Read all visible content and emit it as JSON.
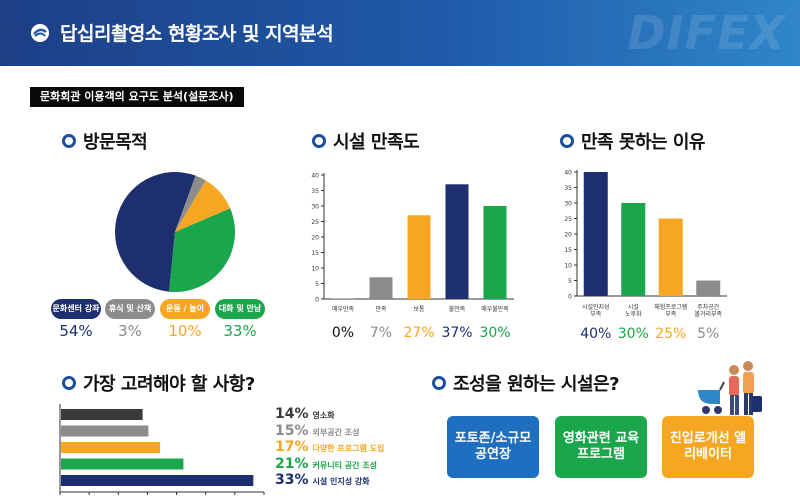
{
  "header": {
    "title": "답십리촬영소 현황조사 및 지역분석",
    "brand": "DIFEX"
  },
  "section_tag": "문화회관 이용객의 요구도 분석(설문조사)",
  "colors": {
    "navy": "#1d2f6f",
    "gray": "#8c8c8c",
    "orange": "#f6a623",
    "green": "#1aa64a",
    "blue": "#1f4e9c",
    "header_blue": "#1f5aa8"
  },
  "panels": {
    "visit": {
      "title": "방문목적"
    },
    "satisfaction": {
      "title": "시설 만족도"
    },
    "reasons": {
      "title": "만족 못하는 이유"
    },
    "considerations": {
      "title": "가장 고려해야 할 사항?"
    },
    "facilities": {
      "title": "조성을 원하는 시설은?"
    }
  },
  "facilities": [
    {
      "label": "포토존/소규모 공연장",
      "color": "#1f6fc0"
    },
    {
      "label": "영화관련 교육프로그램",
      "color": "#1aa64a"
    },
    {
      "label": "진입로개선 엘리베이터",
      "color": "#f6a623"
    }
  ],
  "chart_data": [
    {
      "type": "pie",
      "title": "방문목적",
      "categories": [
        "문화센터 강좌",
        "휴식 및 산책",
        "운동 / 놀이",
        "대화 및 만남"
      ],
      "values": [
        54,
        3,
        10,
        33
      ],
      "value_labels": [
        "54%",
        "3%",
        "10%",
        "33%"
      ],
      "colors": [
        "#1d2f6f",
        "#8c8c8c",
        "#f6a623",
        "#1aa64a"
      ]
    },
    {
      "type": "bar",
      "title": "시설 만족도",
      "categories": [
        "매우만족",
        "만족",
        "보통",
        "불만족",
        "매우불만족"
      ],
      "values": [
        0,
        7,
        27,
        37,
        30
      ],
      "value_labels": [
        "0%",
        "7%",
        "27%",
        "37%",
        "30%"
      ],
      "colors": [
        "#8c8c8c",
        "#8c8c8c",
        "#f6a623",
        "#1d2f6f",
        "#1aa64a"
      ],
      "yticks": [
        0,
        5,
        10,
        15,
        20,
        25,
        30,
        35,
        40
      ],
      "ylim": [
        0,
        40
      ]
    },
    {
      "type": "bar",
      "title": "만족 못하는 이유",
      "categories": [
        "시설인지성 부족",
        "시설 노후화",
        "체험프로그램 부족",
        "주차공간 볼거리부족"
      ],
      "values": [
        40,
        30,
        25,
        5
      ],
      "value_labels": [
        "40%",
        "30%",
        "25%",
        "5%"
      ],
      "colors": [
        "#1d2f6f",
        "#1aa64a",
        "#f6a623",
        "#8c8c8c"
      ],
      "yticks": [
        0,
        5,
        10,
        15,
        20,
        25,
        30,
        35,
        40
      ],
      "ylim": [
        0,
        40
      ]
    },
    {
      "type": "bar",
      "orientation": "horizontal",
      "title": "가장 고려해야 할 사항?",
      "categories": [
        "영소화",
        "외부공간 조성",
        "다양한 프로그램 도입",
        "커뮤니티 공간 조성",
        "시설 인지성 강화"
      ],
      "values": [
        14,
        15,
        17,
        21,
        33
      ],
      "value_labels": [
        "14%",
        "15%",
        "17%",
        "21%",
        "33%"
      ],
      "colors": [
        "#3a3a3a",
        "#8c8c8c",
        "#f6a623",
        "#1aa64a",
        "#1d2f6f"
      ],
      "xlim": [
        0,
        35
      ]
    }
  ]
}
